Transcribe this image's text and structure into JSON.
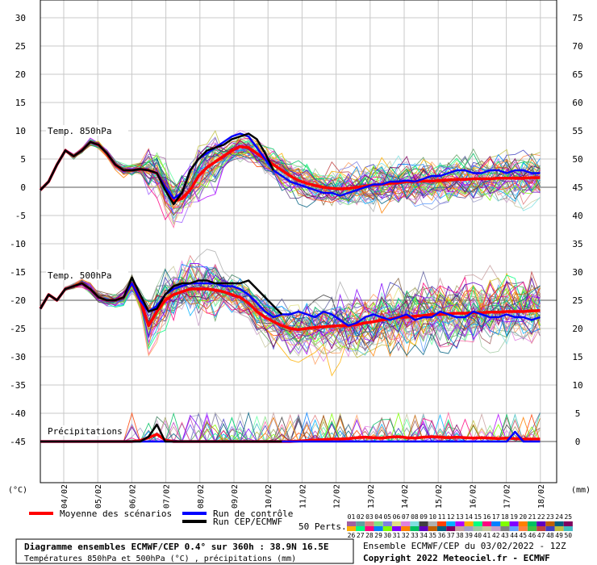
{
  "chart_data": {
    "type": "line",
    "title": "Diagramme ensembles ECMWF/CEP 0.4° sur 360h : 38.9N 16.5E",
    "subtitle": "Températures 850hPa et 500hPa (°C) , précipitations (mm)",
    "source_line": "Ensemble ECMWF/CEP du 03/02/2022 - 12Z",
    "copyright": "Copyright 2022 Meteociel.fr - ECMWF",
    "left_unit": "(°C)",
    "right_unit": "(mm)",
    "x_labels": [
      "04/02",
      "05/02",
      "06/02",
      "07/02",
      "08/02",
      "09/02",
      "10/02",
      "11/02",
      "12/02",
      "13/02",
      "14/02",
      "15/02",
      "16/02",
      "17/02",
      "18/02"
    ],
    "y_left_ticks": [
      30,
      25,
      20,
      15,
      10,
      5,
      0,
      -5,
      -10,
      -15,
      -20,
      -25,
      -30,
      -35,
      -40,
      -45
    ],
    "y_right_ticks": [
      75,
      70,
      65,
      60,
      55,
      50,
      45,
      40,
      35,
      30,
      25,
      20,
      15,
      10,
      5,
      0
    ],
    "y_left_range": [
      -50,
      33
    ],
    "panel_labels": {
      "t850": "Temp. 850hPa",
      "t500": "Temp. 500hPa",
      "precip": "Précipitations"
    },
    "x_hours": [
      0,
      6,
      12,
      18,
      24,
      30,
      36,
      42,
      48,
      54,
      60,
      66,
      72,
      78,
      84,
      90,
      96,
      102,
      108,
      114,
      120,
      126,
      132,
      138,
      144,
      150,
      156,
      162,
      168,
      174,
      180,
      186,
      192,
      198,
      204,
      210,
      216,
      222,
      228,
      234,
      240,
      246,
      252,
      258,
      264,
      270,
      276,
      282,
      288,
      294,
      300,
      306,
      312,
      318,
      324,
      330,
      336,
      342,
      348,
      354,
      360
    ],
    "series": [
      {
        "name": "Moyenne des scénarios",
        "panel": "t850",
        "color": "#ff0000",
        "values": [
          -0.5,
          1,
          4,
          6.5,
          5.5,
          6.5,
          8,
          7.5,
          6,
          4,
          3,
          3,
          3.2,
          3,
          2.5,
          0,
          -2.5,
          -2,
          -0.5,
          2,
          3.5,
          4.5,
          5.5,
          6.5,
          7.2,
          7,
          6,
          5,
          4,
          3,
          2,
          1.2,
          0.7,
          0.3,
          0,
          -0.2,
          -0.3,
          -0.2,
          0,
          0.2,
          0.4,
          0.5,
          0.7,
          0.8,
          1,
          1,
          1.1,
          1.1,
          1.2,
          1.3,
          1.4,
          1.4,
          1.5,
          1.5,
          1.5,
          1.6,
          1.6,
          1.6,
          1.6,
          1.7,
          1.7
        ]
      },
      {
        "name": "Run de contrôle",
        "panel": "t850",
        "color": "#0000ff",
        "values": [
          -0.5,
          1,
          4,
          6.5,
          5.5,
          6.5,
          8,
          7.5,
          6,
          4,
          3,
          3,
          3.2,
          3,
          2.5,
          0,
          -2,
          -1,
          3,
          5,
          6,
          7,
          8,
          9,
          9.5,
          9,
          7,
          5,
          3,
          2,
          1,
          0.5,
          0,
          -0.5,
          -1,
          -1,
          -1.5,
          -1,
          -0.5,
          0,
          0.5,
          0.5,
          1,
          1,
          1.2,
          1,
          1.5,
          2,
          2,
          2.5,
          3,
          3,
          2.5,
          2.5,
          3,
          3,
          2.5,
          3,
          3,
          2.5,
          2.5
        ]
      },
      {
        "name": "Run CEP/ECMWF",
        "panel": "t850",
        "color": "#000000",
        "values": [
          -0.5,
          1,
          4,
          6.5,
          5.5,
          6.5,
          8,
          7.5,
          6,
          4,
          3,
          3,
          3.2,
          3,
          2.5,
          -0.5,
          -3,
          -1,
          3,
          5,
          6.5,
          7,
          7.5,
          8.5,
          9,
          9.5,
          8.5,
          6,
          3,
          null,
          null,
          null,
          null,
          null,
          null,
          null,
          null,
          null,
          null,
          null,
          null,
          null,
          null,
          null,
          null,
          null,
          null,
          null,
          null,
          null,
          null,
          null,
          null,
          null,
          null,
          null,
          null,
          null,
          null,
          null,
          null
        ]
      },
      {
        "name": "Moyenne des scénarios",
        "panel": "t500",
        "color": "#ff0000",
        "values": [
          -21.5,
          -19,
          -20,
          -18,
          -17.5,
          -17,
          -18,
          -19.5,
          -20,
          -20,
          -19.5,
          -17,
          -20,
          -24.5,
          -22,
          -20,
          -19,
          -18.5,
          -18,
          -18,
          -18,
          -18.2,
          -18.5,
          -19,
          -19.5,
          -20.5,
          -22,
          -23,
          -23.8,
          -24.5,
          -25,
          -25.2,
          -25,
          -24.8,
          -24.7,
          -24.6,
          -24.5,
          -24.5,
          -24.3,
          -24,
          -23.8,
          -23.5,
          -23.3,
          -23,
          -23,
          -22.8,
          -22.7,
          -22.5,
          -22.5,
          -22.4,
          -22.3,
          -22.3,
          -22.2,
          -22.2,
          -22.1,
          -22.1,
          -22,
          -22,
          -22,
          -21.9,
          -21.8
        ]
      },
      {
        "name": "Run de contrôle",
        "panel": "t500",
        "color": "#0000ff",
        "values": [
          -21.5,
          -19,
          -20,
          -18,
          -17.5,
          -17,
          -18,
          -19.5,
          -20,
          -20,
          -19.5,
          -17,
          -20,
          -22,
          -21,
          -19,
          -18,
          -17.5,
          -17,
          -17,
          -17,
          -17,
          -17.5,
          -17.5,
          -18,
          -19,
          -20.5,
          -22,
          -23,
          -22.5,
          -22.5,
          -22,
          -22.5,
          -23,
          -22,
          -22.5,
          -23.5,
          -24.5,
          -24,
          -23,
          -22.5,
          -23,
          -23.5,
          -23,
          -22.5,
          -23.5,
          -23,
          -23,
          -22,
          -22.5,
          -23,
          -23,
          -22,
          -22.5,
          -23,
          -23,
          -22.5,
          -23,
          -23,
          -23.5,
          -23
        ]
      },
      {
        "name": "Run CEP/ECMWF",
        "panel": "t500",
        "color": "#000000",
        "values": [
          -21.5,
          -19,
          -20,
          -18,
          -17.5,
          -17,
          -18,
          -19.5,
          -20,
          -20,
          -19.5,
          -16,
          -19,
          -22,
          -21.5,
          -19,
          -17.5,
          -17,
          -17,
          -16.5,
          -16.5,
          -17,
          -17,
          -17,
          -17,
          -16.5,
          -18,
          -19.5,
          -21,
          -22.5,
          null,
          null,
          null,
          null,
          null,
          null,
          null,
          null,
          null,
          null,
          null,
          null,
          null,
          null,
          null,
          null,
          null,
          null,
          null,
          null,
          null,
          null,
          null,
          null,
          null,
          null,
          null,
          null,
          null,
          null,
          null
        ]
      },
      {
        "name": "Moyenne des scénarios",
        "panel": "precip",
        "color": "#ff0000",
        "values": [
          0,
          0,
          0,
          0,
          0,
          0,
          0,
          0,
          0,
          0,
          0,
          0,
          0.2,
          0.8,
          1.5,
          0.3,
          0,
          0,
          0,
          0,
          0,
          0,
          0,
          0,
          0,
          0,
          0,
          0,
          0,
          0,
          0,
          0.1,
          0.2,
          0.3,
          0.4,
          0.5,
          0.5,
          0.6,
          0.8,
          0.9,
          0.8,
          0.7,
          0.9,
          1,
          0.8,
          0.7,
          0.9,
          1,
          0.9,
          0.8,
          0.9,
          0.8,
          0.7,
          0.8,
          0.7,
          0.6,
          0.7,
          0.6,
          0.5,
          0.5,
          0.5
        ]
      },
      {
        "name": "Run de contrôle",
        "panel": "precip",
        "color": "#0000ff",
        "values": [
          0,
          0,
          0,
          0,
          0,
          0,
          0,
          0,
          0,
          0,
          0,
          0,
          0,
          0,
          0,
          0,
          0,
          0,
          0,
          0,
          0,
          0,
          0,
          0,
          0,
          0,
          0,
          0,
          0,
          0,
          0,
          0,
          0,
          0,
          0,
          0,
          0,
          0,
          0,
          0,
          0,
          0,
          0,
          0,
          0,
          0,
          0,
          0,
          0,
          0,
          0,
          0,
          0,
          0,
          0,
          0,
          0,
          2,
          0,
          0,
          0
        ]
      },
      {
        "name": "Run CEP/ECMWF",
        "panel": "precip",
        "color": "#000000",
        "values": [
          0,
          0,
          0,
          0,
          0,
          0,
          0,
          0,
          0,
          0,
          0,
          0,
          0,
          1,
          3.5,
          0,
          0,
          0,
          0,
          0,
          0,
          0,
          0,
          0,
          0,
          0,
          0,
          0,
          0,
          0,
          null,
          null,
          null,
          null,
          null,
          null,
          null,
          null,
          null,
          null,
          null,
          null,
          null,
          null,
          null,
          null,
          null,
          null,
          null,
          null,
          null,
          null,
          null,
          null,
          null,
          null,
          null,
          null,
          null,
          null,
          null
        ]
      }
    ],
    "legend": {
      "mean": "Moyenne des scénarios",
      "control": "Run de contrôle",
      "run": "Run CEP/ECMWF",
      "perts_label": "50 Perts.",
      "perts_numbers": [
        "01",
        "02",
        "03",
        "04",
        "05",
        "06",
        "07",
        "08",
        "09",
        "10",
        "11",
        "12",
        "13",
        "14",
        "15",
        "16",
        "17",
        "18",
        "19",
        "20",
        "21",
        "22",
        "23",
        "24",
        "25",
        "26",
        "27",
        "28",
        "29",
        "30",
        "31",
        "32",
        "33",
        "34",
        "35",
        "36",
        "37",
        "38",
        "39",
        "40",
        "41",
        "42",
        "43",
        "44",
        "45",
        "46",
        "47",
        "48",
        "49",
        "50"
      ],
      "perts_colors": [
        "#c8a0a0",
        "#a0a0c8",
        "#a0c8a0",
        "#c8c8a0",
        "#c8a0c8",
        "#808080",
        "#60a0ff",
        "#ff8040",
        "#40c040",
        "#c04040",
        "#4040c0",
        "#c0c040",
        "#40c0c0",
        "#c040c0",
        "#806040",
        "#408060",
        "#604080",
        "#ff60a0",
        "#60ffa0",
        "#a060ff",
        "#ffa060",
        "#60a060",
        "#a06060",
        "#6060a0",
        "#a0a060",
        "#a060a0",
        "#60a0a0",
        "#e08080",
        "#80e080",
        "#8080e0",
        "#e0e080",
        "#e080e0",
        "#80e0e0",
        "#404040",
        "#b0b0b0",
        "#ff4000",
        "#00b0ff",
        "#b000ff",
        "#ffb000",
        "#00ff80",
        "#ff0080",
        "#0080ff",
        "#80ff00",
        "#8000ff",
        "#ff8000",
        "#00c060",
        "#6000c0",
        "#c06000",
        "#006080",
        "#800060"
      ]
    }
  }
}
